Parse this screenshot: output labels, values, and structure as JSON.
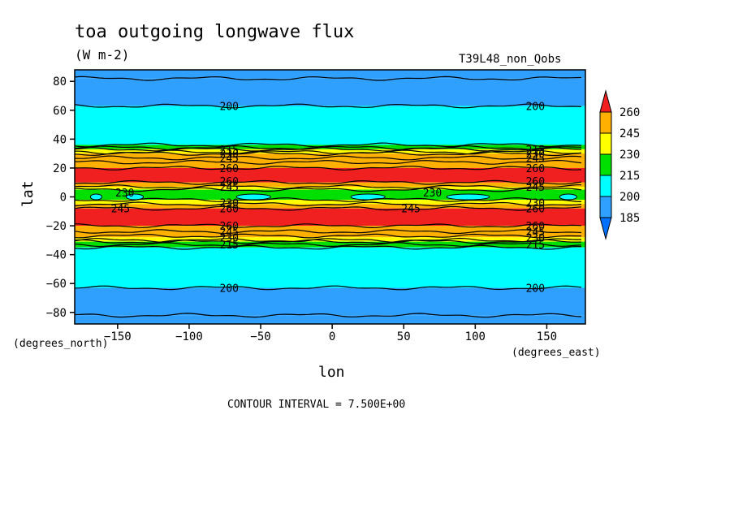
{
  "chart_data": {
    "type": "heatmap",
    "title": "toa outgoing longwave flux",
    "units": "(W m-2)",
    "run_label": "T39L48_non_Qobs",
    "xlabel": "lon",
    "ylabel": "lat",
    "x_units_label": "(degrees_east)",
    "y_units_label": "(degrees_north)",
    "xlim": [
      -180,
      177
    ],
    "ylim": [
      -88,
      88
    ],
    "x_ticks": [
      -150,
      -100,
      -50,
      0,
      50,
      100,
      150
    ],
    "x_tick_labels": [
      "−150",
      "−100",
      "−50",
      "0",
      "50",
      "100",
      "150"
    ],
    "y_ticks": [
      80,
      60,
      40,
      20,
      0,
      -20,
      -40,
      -60,
      -80
    ],
    "y_tick_labels": [
      "80",
      "60",
      "40",
      "20",
      "0",
      "−20",
      "−40",
      "−60",
      "−80"
    ],
    "contour_interval_text": "CONTOUR INTERVAL = 7.500E+00",
    "levels": [
      185,
      200,
      215,
      230,
      245,
      260
    ],
    "level_labels": [
      "185",
      "200",
      "215",
      "230",
      "245",
      "260"
    ],
    "level_colors": [
      "#0070ff",
      "#30a0ff",
      "#00ffff",
      "#00e000",
      "#ffff00",
      "#ffb000",
      "#f02020"
    ],
    "bands": [
      {
        "lat_top": 88,
        "lat_bot": 82,
        "color": "#30a0ff"
      },
      {
        "lat_top": 82,
        "lat_bot": 63,
        "color": "#30a0ff"
      },
      {
        "lat_top": 63,
        "lat_bot": 36,
        "color": "#00ffff"
      },
      {
        "lat_top": 36,
        "lat_bot": 33,
        "color": "#00e000"
      },
      {
        "lat_top": 33,
        "lat_bot": 30,
        "color": "#ffff00"
      },
      {
        "lat_top": 30,
        "lat_bot": 20,
        "color": "#ffb000"
      },
      {
        "lat_top": 20,
        "lat_bot": 10,
        "color": "#f02020"
      },
      {
        "lat_top": 10,
        "lat_bot": 7,
        "color": "#ffb000"
      },
      {
        "lat_top": 7,
        "lat_bot": 5,
        "color": "#ffff00"
      },
      {
        "lat_top": 5,
        "lat_bot": -2,
        "color": "#00e000"
      },
      {
        "lat_top": -2,
        "lat_bot": -5,
        "color": "#ffff00"
      },
      {
        "lat_top": -5,
        "lat_bot": -8,
        "color": "#ffb000"
      },
      {
        "lat_top": -8,
        "lat_bot": -20,
        "color": "#f02020"
      },
      {
        "lat_top": -20,
        "lat_bot": -28,
        "color": "#ffb000"
      },
      {
        "lat_top": -28,
        "lat_bot": -31,
        "color": "#ffff00"
      },
      {
        "lat_top": -31,
        "lat_bot": -35,
        "color": "#00e000"
      },
      {
        "lat_top": -35,
        "lat_bot": -63,
        "color": "#00ffff"
      },
      {
        "lat_top": -63,
        "lat_bot": -82,
        "color": "#30a0ff"
      },
      {
        "lat_top": -82,
        "lat_bot": -88,
        "color": "#30a0ff"
      }
    ],
    "contour_lines_lat": [
      82,
      63,
      36,
      34,
      33,
      31,
      30,
      27,
      24,
      20,
      10,
      7,
      5,
      -2,
      -5,
      -8,
      -20,
      -24,
      -27,
      -30,
      -31,
      -33,
      -35,
      -63,
      -82
    ],
    "cyan_patches": [
      {
        "lon": -165,
        "lat": 0,
        "dlon": 4,
        "dlat": 2
      },
      {
        "lon": -138,
        "lat": 0,
        "dlon": 6,
        "dlat": 2
      },
      {
        "lon": -55,
        "lat": 0,
        "dlon": 12,
        "dlat": 2
      },
      {
        "lon": 25,
        "lat": 0,
        "dlon": 12,
        "dlat": 2
      },
      {
        "lon": 95,
        "lat": 0,
        "dlon": 15,
        "dlat": 2
      },
      {
        "lon": 165,
        "lat": 0,
        "dlon": 6,
        "dlat": 2
      }
    ],
    "annotations": [
      {
        "text": "200",
        "lon": -72,
        "lat": 63
      },
      {
        "text": "200",
        "lon": 142,
        "lat": 63
      },
      {
        "text": "200",
        "lon": -72,
        "lat": -63
      },
      {
        "text": "200",
        "lon": 142,
        "lat": -63
      },
      {
        "text": "215",
        "lon": -72,
        "lat": 33
      },
      {
        "text": "230",
        "lon": -72,
        "lat": 30
      },
      {
        "text": "245",
        "lon": -72,
        "lat": 27
      },
      {
        "text": "260",
        "lon": -72,
        "lat": 20
      },
      {
        "text": "260",
        "lon": -72,
        "lat": 11
      },
      {
        "text": "245",
        "lon": -72,
        "lat": 7
      },
      {
        "text": "215",
        "lon": 142,
        "lat": 33
      },
      {
        "text": "230",
        "lon": 142,
        "lat": 30
      },
      {
        "text": "245",
        "lon": 142,
        "lat": 27
      },
      {
        "text": "260",
        "lon": 142,
        "lat": 20
      },
      {
        "text": "260",
        "lon": 142,
        "lat": 11
      },
      {
        "text": "245",
        "lon": 142,
        "lat": 7
      },
      {
        "text": "230",
        "lon": -145,
        "lat": 3
      },
      {
        "text": "245",
        "lon": -148,
        "lat": -8
      },
      {
        "text": "230",
        "lon": 70,
        "lat": 3
      },
      {
        "text": "245",
        "lon": 55,
        "lat": -8
      },
      {
        "text": "230",
        "lon": -72,
        "lat": -4
      },
      {
        "text": "260",
        "lon": -72,
        "lat": -8
      },
      {
        "text": "230",
        "lon": 142,
        "lat": -4
      },
      {
        "text": "260",
        "lon": 142,
        "lat": -8
      },
      {
        "text": "260",
        "lon": -72,
        "lat": -20
      },
      {
        "text": "245",
        "lon": -72,
        "lat": -24
      },
      {
        "text": "230",
        "lon": -72,
        "lat": -28
      },
      {
        "text": "215",
        "lon": -72,
        "lat": -33
      },
      {
        "text": "260",
        "lon": 142,
        "lat": -20
      },
      {
        "text": "245",
        "lon": 142,
        "lat": -24
      },
      {
        "text": "230",
        "lon": 142,
        "lat": -28
      },
      {
        "text": "215",
        "lon": 142,
        "lat": -33
      }
    ]
  }
}
